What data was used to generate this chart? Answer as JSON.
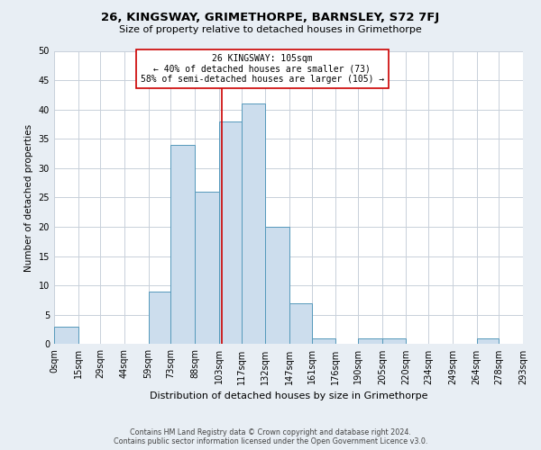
{
  "title": "26, KINGSWAY, GRIMETHORPE, BARNSLEY, S72 7FJ",
  "subtitle": "Size of property relative to detached houses in Grimethorpe",
  "xlabel": "Distribution of detached houses by size in Grimethorpe",
  "ylabel": "Number of detached properties",
  "bar_edges": [
    0,
    15,
    29,
    44,
    59,
    73,
    88,
    103,
    117,
    132,
    147,
    161,
    176,
    190,
    205,
    220,
    234,
    249,
    264,
    278,
    293
  ],
  "bar_heights": [
    3,
    0,
    0,
    0,
    9,
    34,
    26,
    38,
    41,
    20,
    7,
    1,
    0,
    1,
    1,
    0,
    0,
    0,
    1,
    0
  ],
  "tick_labels": [
    "0sqm",
    "15sqm",
    "29sqm",
    "44sqm",
    "59sqm",
    "73sqm",
    "88sqm",
    "103sqm",
    "117sqm",
    "132sqm",
    "147sqm",
    "161sqm",
    "176sqm",
    "190sqm",
    "205sqm",
    "220sqm",
    "234sqm",
    "249sqm",
    "264sqm",
    "278sqm",
    "293sqm"
  ],
  "bar_color": "#ccdded",
  "bar_edge_color": "#5599bb",
  "vline_x": 105,
  "vline_color": "#cc0000",
  "annotation_line1": "26 KINGSWAY: 105sqm",
  "annotation_line2": "← 40% of detached houses are smaller (73)",
  "annotation_line3": "58% of semi-detached houses are larger (105) →",
  "annotation_box_color": "#ffffff",
  "annotation_box_edge": "#cc0000",
  "ylim": [
    0,
    50
  ],
  "yticks": [
    0,
    5,
    10,
    15,
    20,
    25,
    30,
    35,
    40,
    45,
    50
  ],
  "footer_line1": "Contains HM Land Registry data © Crown copyright and database right 2024.",
  "footer_line2": "Contains public sector information licensed under the Open Government Licence v3.0.",
  "bg_color": "#e8eef4",
  "plot_bg_color": "#ffffff",
  "grid_color": "#c8d0da"
}
